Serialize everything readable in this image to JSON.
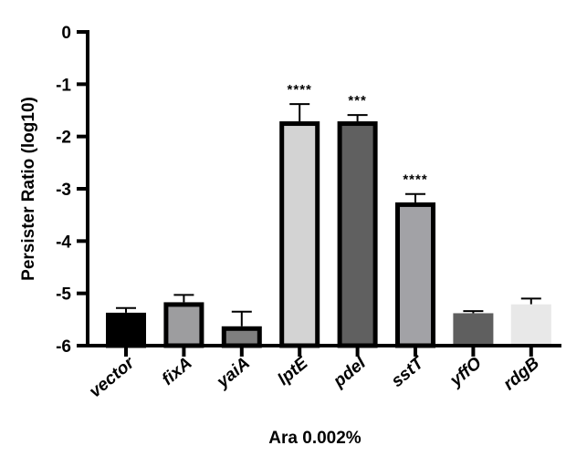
{
  "chart_data": {
    "type": "bar",
    "title": "",
    "xlabel": "Ara 0.002%",
    "ylabel": "Persister Ratio (log10)",
    "ylim": [
      -6,
      0
    ],
    "yticks": [
      "0",
      "-1",
      "-2",
      "-3",
      "-4",
      "-5",
      "-6"
    ],
    "grid": false,
    "categories": [
      "vector",
      "fixA",
      "yaiA",
      "lptE",
      "pdeI",
      "sstT",
      "yffO",
      "rdgB"
    ],
    "values": [
      -5.37,
      -5.17,
      -5.63,
      -1.71,
      -1.71,
      -3.26,
      -5.38,
      -5.21
    ],
    "error_upper": [
      0.09,
      0.14,
      0.28,
      0.33,
      0.12,
      0.16,
      0.04,
      0.11
    ],
    "significance": [
      "",
      "",
      "",
      "****",
      "***",
      "****",
      "",
      ""
    ],
    "colors": [
      "#000000",
      "#9d9d9f",
      "#7f7f7f",
      "#d3d3d3",
      "#606060",
      "#a2a2a6",
      "#5f5f5f",
      "#e8e8e8"
    ],
    "bordered": [
      true,
      true,
      true,
      true,
      true,
      true,
      false,
      false
    ]
  }
}
